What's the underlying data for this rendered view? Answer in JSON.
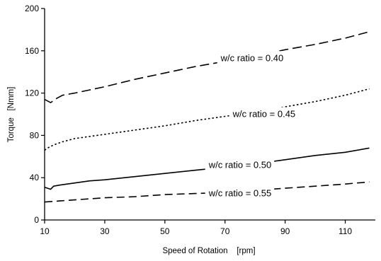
{
  "chart_data": {
    "type": "line",
    "title": "",
    "xlabel": "Speed of Rotation    [rpm]",
    "ylabel": "Torque   [Nmm]",
    "xlim": [
      10,
      120
    ],
    "ylim": [
      0,
      200
    ],
    "xticks": [
      10,
      30,
      50,
      70,
      90,
      110
    ],
    "yticks": [
      0,
      40,
      80,
      120,
      160,
      200
    ],
    "grid": false,
    "legend": "none",
    "series": [
      {
        "name": "w/c ratio = 0.40",
        "style": "dashed-long",
        "x": [
          10,
          12,
          14,
          16,
          20,
          25,
          30,
          40,
          50,
          60,
          70,
          80,
          90,
          100,
          110,
          118
        ],
        "y": [
          114,
          111,
          115,
          118,
          120,
          123,
          126,
          133,
          139,
          145,
          150,
          155,
          161,
          166,
          172,
          178
        ]
      },
      {
        "name": "w/c ratio = 0.45",
        "style": "dotted",
        "x": [
          10,
          11,
          13,
          16,
          20,
          25,
          30,
          40,
          50,
          60,
          70,
          80,
          90,
          100,
          110,
          118
        ],
        "y": [
          66,
          68,
          71,
          74,
          77,
          79,
          81,
          85,
          89,
          94,
          98,
          102,
          107,
          112,
          118,
          124
        ]
      },
      {
        "name": "w/c ratio = 0.50",
        "style": "solid",
        "x": [
          10,
          11,
          12,
          13,
          15,
          20,
          25,
          30,
          40,
          50,
          60,
          70,
          80,
          90,
          100,
          110,
          118
        ],
        "y": [
          31,
          30,
          29,
          32,
          33,
          35,
          37,
          38,
          41,
          44,
          47,
          50,
          53,
          57,
          61,
          64,
          68
        ]
      },
      {
        "name": "w/c ratio = 0.55",
        "style": "dashed",
        "x": [
          10,
          15,
          20,
          30,
          40,
          50,
          60,
          70,
          80,
          90,
          100,
          110,
          118
        ],
        "y": [
          17,
          18,
          19,
          21,
          22,
          24,
          25,
          26,
          28,
          30,
          32,
          34,
          36
        ]
      }
    ],
    "annotations": [
      {
        "text": "w/c ratio = 0.40",
        "x": 79,
        "y": 153
      },
      {
        "text": "w/c ratio = 0.45",
        "x": 83,
        "y": 100
      },
      {
        "text": "w/c ratio = 0.50",
        "x": 75,
        "y": 52
      },
      {
        "text": "w/c ratio = 0.55",
        "x": 75,
        "y": 25
      }
    ]
  }
}
